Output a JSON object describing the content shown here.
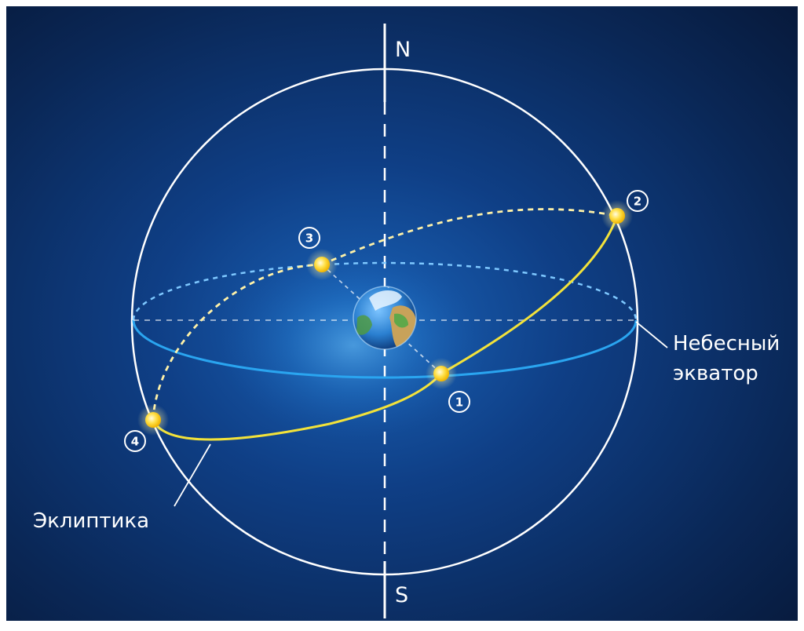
{
  "labels": {
    "north": "N",
    "south": "S",
    "equator_line1": "Небесный",
    "equator_line2": "экватор",
    "ecliptic": "Эклиптика"
  },
  "points": [
    {
      "number": "1",
      "name": "vernal-equinox-point"
    },
    {
      "number": "2",
      "name": "summer-solstice-point"
    },
    {
      "number": "3",
      "name": "autumnal-equinox-point"
    },
    {
      "number": "4",
      "name": "winter-solstice-point"
    }
  ],
  "colors": {
    "background": "#0a2350",
    "sphere": "#ffffff",
    "equator": "#2aa5f0",
    "ecliptic": "#f2e23a",
    "sun": "#ffd21a"
  },
  "icons": {
    "earth": "earth-globe-icon",
    "sun": "sun-icon"
  }
}
